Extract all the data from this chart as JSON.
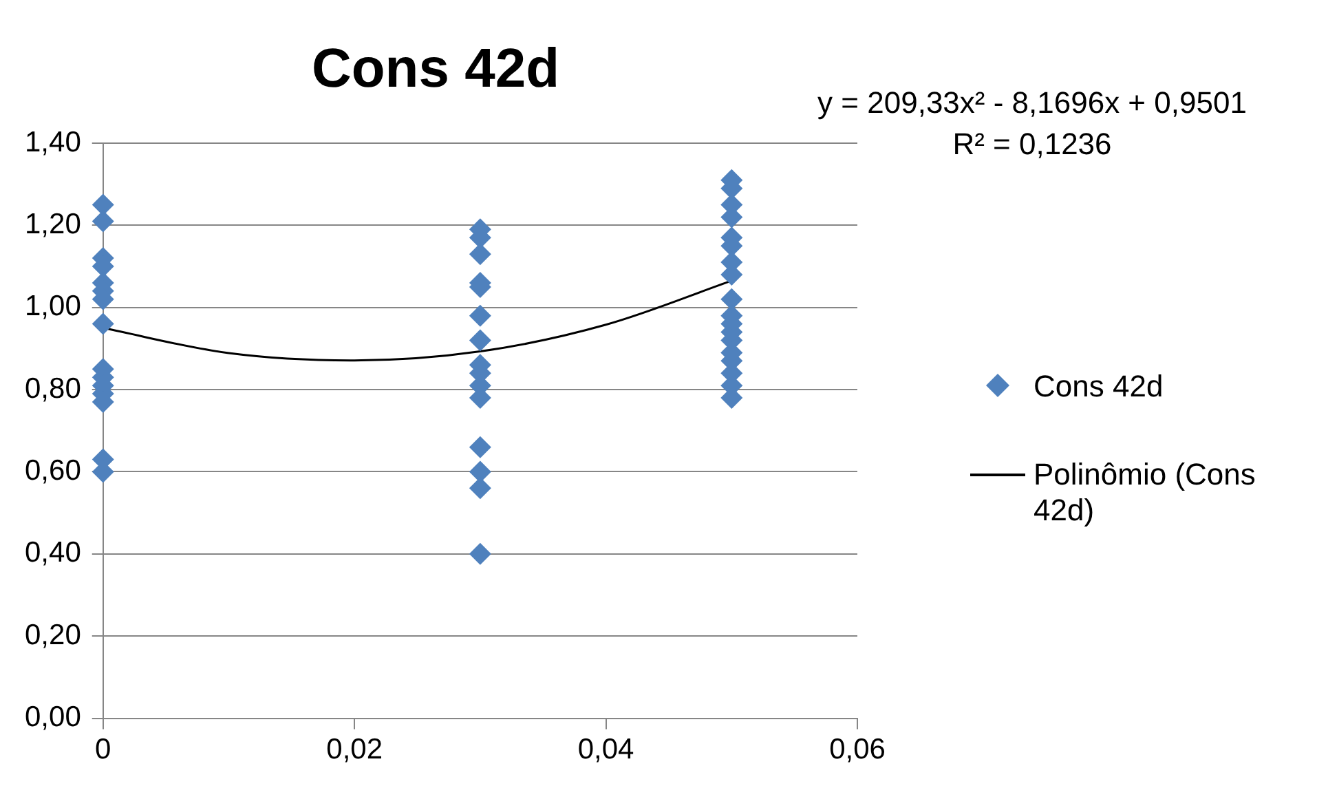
{
  "chart_data": {
    "type": "scatter",
    "title": "Cons 42d",
    "xlim": [
      0,
      0.06
    ],
    "xticks": [
      {
        "value": 0,
        "label": "0"
      },
      {
        "value": 0.02,
        "label": "0,02"
      },
      {
        "value": 0.04,
        "label": "0,04"
      },
      {
        "value": 0.06,
        "label": "0,06"
      }
    ],
    "ylim": [
      0,
      1.4
    ],
    "yticks": [
      {
        "value": 0,
        "label": "0,00"
      },
      {
        "value": 0.2,
        "label": "0,20"
      },
      {
        "value": 0.4,
        "label": "0,40"
      },
      {
        "value": 0.6,
        "label": "0,60"
      },
      {
        "value": 0.8,
        "label": "0,80"
      },
      {
        "value": 1,
        "label": "1,00"
      },
      {
        "value": 1.2,
        "label": "1,20"
      },
      {
        "value": 1.4,
        "label": "1,40"
      }
    ],
    "grid": "y",
    "legend": "right",
    "marker": "diamond",
    "series": [
      {
        "name": "Cons 42d",
        "color": "#4f81bd",
        "x": [
          0,
          0,
          0,
          0,
          0,
          0,
          0,
          0,
          0,
          0,
          0,
          0,
          0,
          0,
          0,
          0.03,
          0.03,
          0.03,
          0.03,
          0.03,
          0.03,
          0.03,
          0.03,
          0.03,
          0.03,
          0.03,
          0.03,
          0.03,
          0.03,
          0.03,
          0.05,
          0.05,
          0.05,
          0.05,
          0.05,
          0.05,
          0.05,
          0.05,
          0.05,
          0.05,
          0.05,
          0.05,
          0.05,
          0.05,
          0.05,
          0.05,
          0.05,
          0.05
        ],
        "values": [
          1.25,
          1.21,
          1.12,
          1.1,
          1.06,
          1.04,
          1.02,
          0.96,
          0.85,
          0.83,
          0.81,
          0.79,
          0.77,
          0.63,
          0.6,
          1.19,
          1.17,
          1.13,
          1.06,
          1.05,
          0.98,
          0.92,
          0.86,
          0.84,
          0.81,
          0.78,
          0.66,
          0.6,
          0.56,
          0.4,
          1.31,
          1.29,
          1.25,
          1.22,
          1.17,
          1.15,
          1.11,
          1.08,
          1.02,
          0.98,
          0.96,
          0.94,
          0.92,
          0.89,
          0.87,
          0.84,
          0.81,
          0.78
        ]
      },
      {
        "name": "Polinômio (Cons 42d)",
        "type": "line",
        "color": "#000000",
        "marker": "none",
        "x": [
          0,
          0.01,
          0.02,
          0.03,
          0.04,
          0.05
        ],
        "values": [
          0.95,
          0.889,
          0.871,
          0.893,
          0.958,
          1.065
        ]
      }
    ],
    "annotations": [
      "y = 209,33x² - 8,1696x + 0,9501",
      "R² = 0,1236"
    ]
  }
}
